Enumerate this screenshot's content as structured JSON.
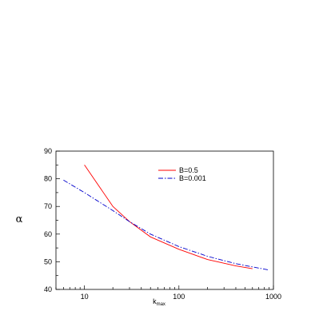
{
  "chart_data": {
    "type": "line",
    "title": "",
    "xlabel": "k",
    "xlabel_subscript": "max",
    "ylabel": "α",
    "xscale": "log",
    "xlim": [
      5,
      1000
    ],
    "ylim": [
      40,
      90
    ],
    "x_ticks": [
      10,
      100,
      1000
    ],
    "x_tick_labels": [
      "10",
      "100",
      "1000"
    ],
    "y_ticks": [
      40,
      50,
      60,
      70,
      80,
      90
    ],
    "y_tick_labels": [
      "40",
      "50",
      "60",
      "70",
      "80",
      "90"
    ],
    "grid": false,
    "legend_position": "top-right",
    "series": [
      {
        "name": "B=0.5",
        "color": "#ff0000",
        "style": "solid",
        "x": [
          10,
          20,
          30,
          50,
          100,
          200,
          400,
          600
        ],
        "y": [
          85,
          70,
          64.5,
          59,
          54.5,
          50.8,
          48.5,
          47.5
        ]
      },
      {
        "name": "B=0.001",
        "color": "#0000cc",
        "style": "dash-dot",
        "x": [
          6,
          10,
          20,
          30,
          50,
          100,
          200,
          400,
          900
        ],
        "y": [
          79.5,
          75,
          68.5,
          64.5,
          60,
          55.5,
          52,
          49.3,
          47
        ]
      }
    ]
  }
}
